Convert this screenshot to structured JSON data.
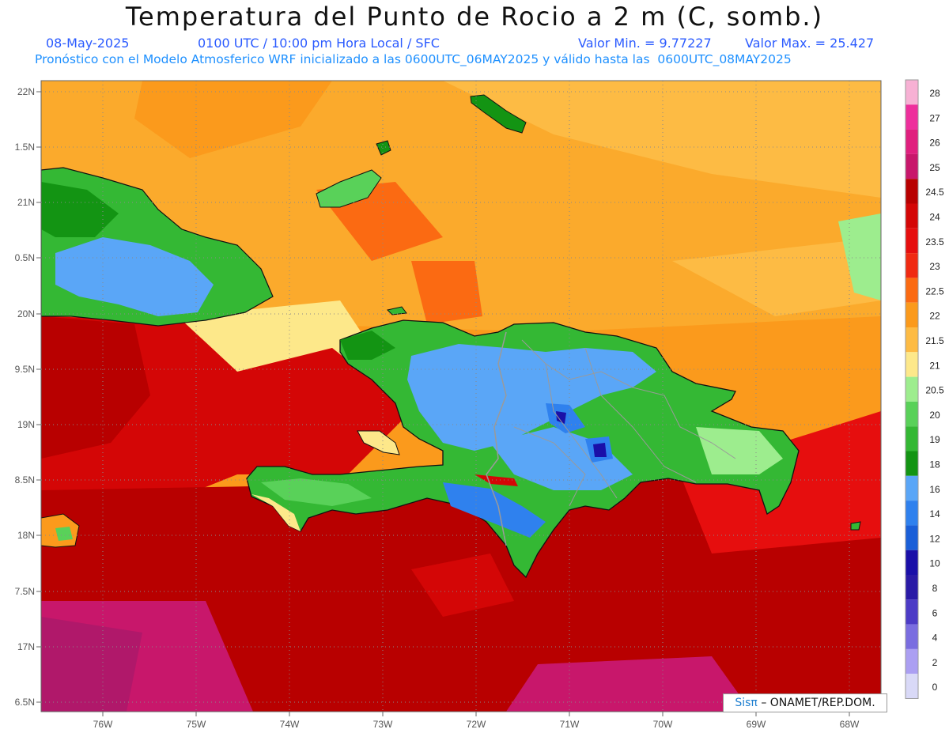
{
  "header": {
    "title": "Temperatura del Punto de Rocio a 2 m (C, somb.)",
    "date": "08-May-2025",
    "time": "0100 UTC / 10:00 pm Hora Local / SFC",
    "min": "Valor Min. = 9.77227",
    "max": "Valor Max. = 25.427",
    "model": "Pronóstico con el Modelo Atmosferico WRF inicializado a las 0600UTC_06MAY2025 y válido hasta las  0600UTC_08MAY2025"
  },
  "lat_labels": [
    "22N",
    "1.5N",
    "21N",
    "0.5N",
    "20N",
    "9.5N",
    "19N",
    "8.5N",
    "18N",
    "7.5N",
    "17N",
    "6.5N"
  ],
  "lon_labels": [
    "76W",
    "75W",
    "74W",
    "73W",
    "72W",
    "71W",
    "70W",
    "69W",
    "68W"
  ],
  "legend": {
    "labels": [
      "28",
      "27",
      "26",
      "25",
      "24.5",
      "24",
      "23.5",
      "23",
      "22.5",
      "22",
      "21.5",
      "21",
      "20.5",
      "20",
      "19",
      "18",
      "16",
      "14",
      "12",
      "10",
      "8",
      "6",
      "4",
      "2",
      "0"
    ],
    "colors": [
      "#f7b1d4",
      "#ee2f9c",
      "#e01f7e",
      "#c8176b",
      "#b80000",
      "#d40606",
      "#e60e0e",
      "#f02a12",
      "#fb6a12",
      "#fb9a1c",
      "#fdbb44",
      "#fde88a",
      "#9ded8e",
      "#59d159",
      "#34b834",
      "#139413",
      "#5aa6f7",
      "#2f81ee",
      "#1a5fd8",
      "#1a0fa8",
      "#2a1aa6",
      "#4c3bc6",
      "#7a6de0",
      "#ab9ff2",
      "#d9d9f7"
    ]
  },
  "credit": {
    "brand": "Sisπ",
    "org": "– ONAMET/REP.DOM."
  }
}
